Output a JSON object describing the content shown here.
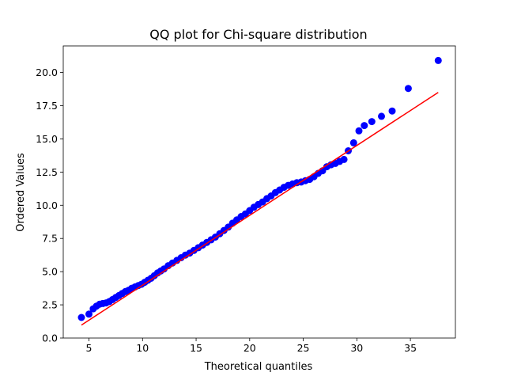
{
  "chart_data": {
    "type": "scatter",
    "title": "QQ plot for Chi-square distribution",
    "xlabel": "Theoretical quantiles",
    "ylabel": "Ordered Values",
    "xlim": [
      2.6,
      39.2
    ],
    "ylim": [
      0,
      22.0
    ],
    "xticks": [
      5,
      10,
      15,
      20,
      25,
      30,
      35
    ],
    "xtick_labels": [
      "5",
      "10",
      "15",
      "20",
      "25",
      "30",
      "35"
    ],
    "yticks": [
      0,
      2.5,
      5,
      7.5,
      10,
      12.5,
      15,
      17.5,
      20
    ],
    "ytick_labels": [
      "0.0",
      "2.5",
      "5.0",
      "7.5",
      "10.0",
      "12.5",
      "15.0",
      "17.5",
      "20.0"
    ],
    "grid": false,
    "legend": "none",
    "series": [
      {
        "kind": "points",
        "color": "#0000ff",
        "x": [
          4.3,
          5.0,
          5.4,
          5.7,
          6.0,
          6.3,
          6.6,
          6.9,
          7.2,
          7.5,
          7.8,
          8.1,
          8.4,
          8.7,
          9.0,
          9.3,
          9.6,
          9.9,
          10.2,
          10.5,
          10.8,
          11.1,
          11.4,
          11.7,
          12.0,
          12.4,
          12.8,
          13.2,
          13.6,
          14.0,
          14.4,
          14.8,
          15.2,
          15.6,
          16.0,
          16.4,
          16.8,
          17.2,
          17.6,
          18.0,
          18.4,
          18.8,
          19.2,
          19.6,
          20.0,
          20.4,
          20.8,
          21.2,
          21.6,
          22.0,
          22.4,
          22.8,
          23.2,
          23.6,
          24.0,
          24.4,
          24.8,
          25.2,
          25.6,
          26.0,
          26.4,
          26.8,
          27.2,
          27.6,
          28.0,
          28.4,
          28.8,
          29.2,
          29.7,
          30.2,
          30.7,
          31.4,
          32.3,
          33.3,
          34.8,
          37.6
        ],
        "y": [
          1.55,
          1.8,
          2.2,
          2.4,
          2.55,
          2.6,
          2.65,
          2.75,
          2.9,
          3.05,
          3.2,
          3.35,
          3.5,
          3.6,
          3.75,
          3.85,
          3.95,
          4.05,
          4.2,
          4.35,
          4.5,
          4.7,
          4.9,
          5.05,
          5.2,
          5.45,
          5.65,
          5.85,
          6.05,
          6.25,
          6.4,
          6.6,
          6.8,
          7.0,
          7.2,
          7.4,
          7.6,
          7.85,
          8.1,
          8.35,
          8.65,
          8.9,
          9.15,
          9.35,
          9.6,
          9.85,
          10.05,
          10.25,
          10.5,
          10.7,
          10.95,
          11.15,
          11.35,
          11.5,
          11.6,
          11.7,
          11.75,
          11.85,
          11.95,
          12.15,
          12.4,
          12.6,
          12.9,
          13.05,
          13.15,
          13.3,
          13.45,
          14.1,
          14.7,
          15.6,
          16.0,
          16.3,
          16.7,
          17.1,
          18.8,
          20.9
        ]
      },
      {
        "kind": "fit-line",
        "color": "#ff0000",
        "x": [
          4.3,
          37.6
        ],
        "y": [
          0.98,
          18.5
        ]
      }
    ]
  }
}
